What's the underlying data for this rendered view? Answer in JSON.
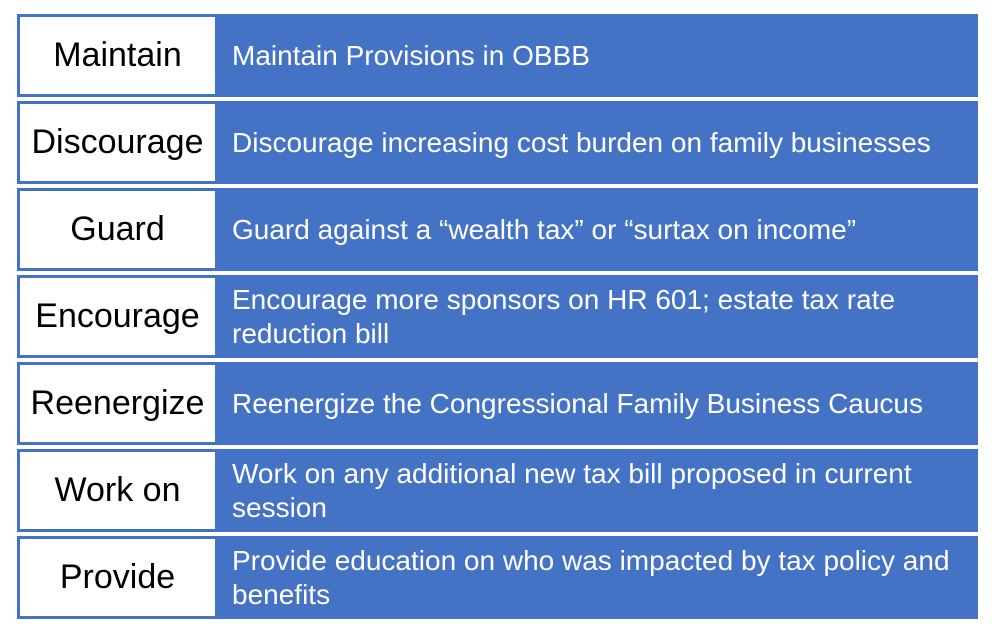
{
  "slide": {
    "colors": {
      "row_fill": "#4472C4",
      "label_box_bg": "#FFFFFF",
      "label_text": "#000000",
      "description_text": "#FFFFFF",
      "page_bg": "#FFFFFF"
    },
    "rows": [
      {
        "label": "Maintain",
        "description": "Maintain Provisions in OBBB"
      },
      {
        "label": "Discourage",
        "description": "Discourage increasing cost burden on family businesses"
      },
      {
        "label": "Guard",
        "description": "Guard against a “wealth tax” or “surtax on income”"
      },
      {
        "label": "Encourage",
        "description": "Encourage more sponsors on HR 601; estate tax rate reduction bill"
      },
      {
        "label": "Reenergize",
        "description": "Reenergize the Congressional Family Business Caucus"
      },
      {
        "label": "Work on",
        "description": "Work on any additional new tax bill proposed in current session"
      },
      {
        "label": "Provide",
        "description": "Provide education on who was impacted by tax policy and benefits"
      }
    ]
  }
}
